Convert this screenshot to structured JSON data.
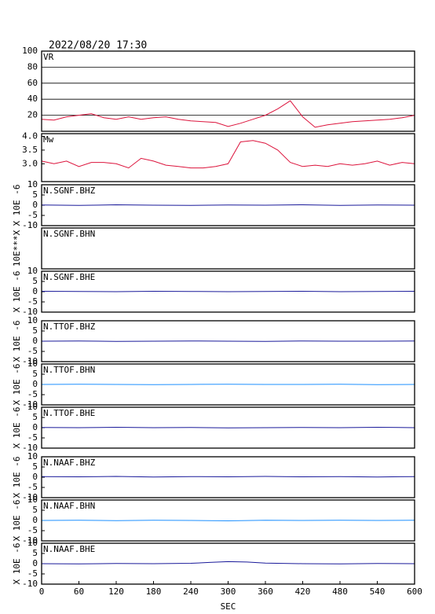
{
  "chart_data": [
    {
      "type": "line",
      "title": "2022/08/20 17:30",
      "label": "VR",
      "color": "#dc143c",
      "grid": true,
      "xlim": [
        0,
        600
      ],
      "ylim": [
        0,
        100
      ],
      "yticks": [
        20,
        40,
        60,
        80,
        100
      ],
      "x": [
        0,
        20,
        40,
        60,
        80,
        100,
        120,
        140,
        160,
        180,
        200,
        220,
        240,
        260,
        280,
        300,
        320,
        340,
        360,
        380,
        400,
        420,
        440,
        460,
        480,
        500,
        520,
        540,
        560,
        580,
        600
      ],
      "values": [
        15,
        14,
        18,
        20,
        22,
        17,
        15,
        18,
        15,
        17,
        18,
        15,
        13,
        12,
        11,
        6,
        10,
        15,
        20,
        28,
        38,
        18,
        5,
        8,
        10,
        12,
        13,
        14,
        15,
        17,
        20
      ]
    },
    {
      "type": "line",
      "label": "Mw",
      "color": "#dc143c",
      "xlim": [
        0,
        600
      ],
      "ylim": [
        2.35,
        4.1
      ],
      "yticks": [
        {
          "value": 3,
          "label": "3.0"
        },
        3.5,
        {
          "value": 4,
          "label": "4.0"
        }
      ],
      "x": [
        0,
        20,
        40,
        60,
        80,
        100,
        120,
        140,
        160,
        180,
        200,
        220,
        240,
        260,
        280,
        300,
        320,
        340,
        360,
        380,
        400,
        420,
        440,
        460,
        480,
        500,
        520,
        540,
        560,
        580,
        600
      ],
      "values": [
        3.1,
        3.0,
        3.1,
        2.9,
        3.05,
        3.05,
        3.0,
        2.85,
        3.2,
        3.1,
        2.95,
        2.9,
        2.85,
        2.85,
        2.9,
        3.0,
        3.8,
        3.85,
        3.75,
        3.5,
        3.05,
        2.9,
        2.95,
        2.9,
        3.0,
        2.95,
        3.0,
        3.1,
        2.95,
        3.05,
        3.0
      ]
    },
    {
      "type": "line",
      "label": "N.SGNF.BHZ",
      "y_label": "X 10E -6",
      "color": "#1a1a9a",
      "xlim": [
        0,
        600
      ],
      "ylim": [
        -10,
        10
      ],
      "yticks": [
        -10,
        -5,
        0,
        5,
        10
      ],
      "x": [
        0,
        60,
        120,
        180,
        240,
        300,
        360,
        420,
        480,
        540,
        600
      ],
      "values": [
        0.1,
        -0.1,
        0.2,
        0,
        -0.1,
        0.1,
        0,
        0.2,
        -0.1,
        0.1,
        0
      ]
    },
    {
      "type": "line",
      "label": "N.SGNF.BHN",
      "y_label": "10E***X",
      "xlim": [
        0,
        600
      ],
      "ylim": [
        -10,
        10
      ]
    },
    {
      "type": "line",
      "label": "N.SGNF.BHE",
      "y_label": "X 10E -6",
      "color": "#1a1a9a",
      "xlim": [
        0,
        600
      ],
      "ylim": [
        -10,
        10
      ],
      "yticks": [
        -10,
        -5,
        0,
        5,
        10
      ],
      "x": [
        0,
        60,
        120,
        180,
        240,
        300,
        360,
        420,
        480,
        540,
        600
      ],
      "values": [
        0.2,
        0.1,
        0,
        0.2,
        0.1,
        0,
        0.1,
        0.2,
        0,
        0.1,
        0.2
      ]
    },
    {
      "type": "line",
      "label": "N.TTOF.BHZ",
      "y_label": "X 10E -6",
      "color": "#1a1a9a",
      "xlim": [
        0,
        600
      ],
      "ylim": [
        -10,
        10
      ],
      "yticks": [
        -10,
        -5,
        0,
        5,
        10
      ],
      "x": [
        0,
        60,
        120,
        180,
        240,
        300,
        360,
        420,
        480,
        540,
        600
      ],
      "values": [
        0,
        0.1,
        -0.1,
        0,
        0.1,
        0,
        -0.1,
        0.1,
        0,
        0,
        0.1
      ]
    },
    {
      "type": "line",
      "label": "N.TTOF.BHN",
      "y_label": "X 10E -6",
      "color": "#1e90ff",
      "xlim": [
        0,
        600
      ],
      "ylim": [
        -10,
        10
      ],
      "yticks": [
        -10,
        -5,
        0,
        5,
        10
      ],
      "x": [
        0,
        60,
        120,
        180,
        240,
        300,
        360,
        420,
        480,
        540,
        600
      ],
      "values": [
        0,
        0.1,
        0,
        -0.1,
        0,
        0.1,
        0,
        0,
        0.1,
        -0.1,
        0
      ]
    },
    {
      "type": "line",
      "label": "N.TTOF.BHE",
      "y_label": "X 10E -6",
      "color": "#1a1a9a",
      "xlim": [
        0,
        600
      ],
      "ylim": [
        -10,
        10
      ],
      "yticks": [
        -10,
        -5,
        0,
        5,
        10
      ],
      "x": [
        0,
        60,
        120,
        180,
        240,
        300,
        360,
        420,
        480,
        540,
        600
      ],
      "values": [
        0.1,
        0,
        0.2,
        0,
        0.1,
        -0.1,
        0,
        0.1,
        0,
        0.2,
        0
      ]
    },
    {
      "type": "line",
      "label": "N.NAAF.BHZ",
      "y_label": "X 10E -6",
      "color": "#1a1a9a",
      "xlim": [
        0,
        600
      ],
      "ylim": [
        -10,
        10
      ],
      "yticks": [
        -10,
        -5,
        0,
        5,
        10
      ],
      "x": [
        0,
        60,
        120,
        180,
        240,
        300,
        360,
        420,
        480,
        540,
        600
      ],
      "values": [
        0.3,
        0.2,
        0.4,
        0.1,
        0.3,
        0.2,
        0.4,
        0.2,
        0.3,
        0.1,
        0.3
      ]
    },
    {
      "type": "line",
      "label": "N.NAAF.BHN",
      "y_label": "X 10E -6",
      "color": "#1e90ff",
      "xlim": [
        0,
        600
      ],
      "ylim": [
        -10,
        10
      ],
      "yticks": [
        -10,
        -5,
        0,
        5,
        10
      ],
      "x": [
        0,
        60,
        120,
        180,
        240,
        300,
        360,
        420,
        480,
        540,
        600
      ],
      "values": [
        0,
        0.1,
        -0.1,
        0.1,
        0,
        -0.2,
        0.1,
        0,
        0.1,
        0,
        0.1
      ]
    },
    {
      "type": "line",
      "label": "N.NAAF.BHE",
      "y_label": "X 10E -6",
      "color": "#1a1a9a",
      "xlim": [
        0,
        600
      ],
      "ylim": [
        -10,
        10
      ],
      "yticks": [
        -10,
        -5,
        0,
        5,
        10
      ],
      "xticks": [
        0,
        60,
        120,
        180,
        240,
        300,
        360,
        420,
        480,
        540,
        600
      ],
      "x_label": "SEC",
      "x": [
        0,
        60,
        120,
        180,
        240,
        270,
        300,
        330,
        360,
        420,
        480,
        540,
        600
      ],
      "values": [
        0,
        -0.1,
        0.1,
        0,
        0.2,
        0.6,
        1,
        0.8,
        0.3,
        0,
        -0.1,
        0.1,
        0
      ]
    }
  ]
}
